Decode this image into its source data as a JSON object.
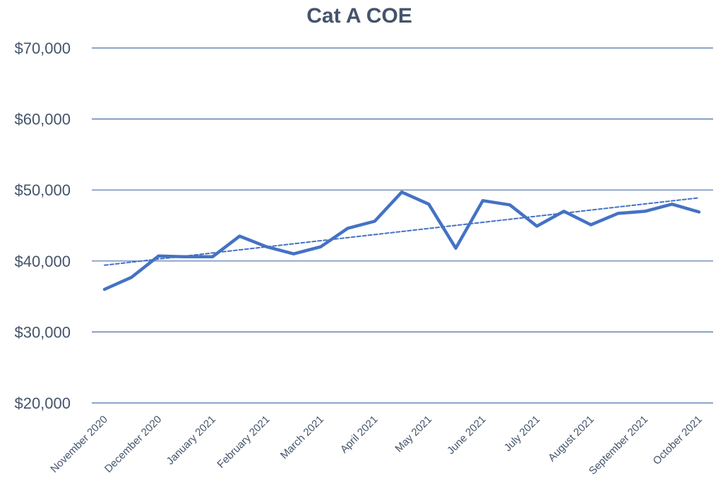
{
  "chart_data": {
    "type": "line",
    "title": "Cat A COE",
    "xlabel": "",
    "ylabel": "",
    "ylim": [
      20000,
      70000
    ],
    "yticks": [
      20000,
      30000,
      40000,
      50000,
      60000,
      70000
    ],
    "ytick_labels": [
      "$20,000",
      "$30,000",
      "$40,000",
      "$50,000",
      "$60,000",
      "$70,000"
    ],
    "xtick_labels": [
      "November 2020",
      "December 2020",
      "January 2021",
      "February 2021",
      "March 2021",
      "April 2021",
      "May 2021",
      "June 2021",
      "July 2021",
      "August 2021",
      "September 2021",
      "October 2021"
    ],
    "grid": true,
    "legend": "none",
    "series": [
      {
        "style": "solid",
        "color": "#4472c4",
        "values": [
          36000,
          37700,
          40700,
          40600,
          40600,
          43500,
          42000,
          41000,
          42000,
          44600,
          45600,
          49700,
          48000,
          41800,
          48500,
          47900,
          44900,
          47000,
          45100,
          46700,
          47000,
          48000,
          46900
        ]
      },
      {
        "style": "dashed",
        "role": "trendline",
        "color": "#4472c4",
        "values": [
          39400,
          48900
        ]
      }
    ]
  }
}
